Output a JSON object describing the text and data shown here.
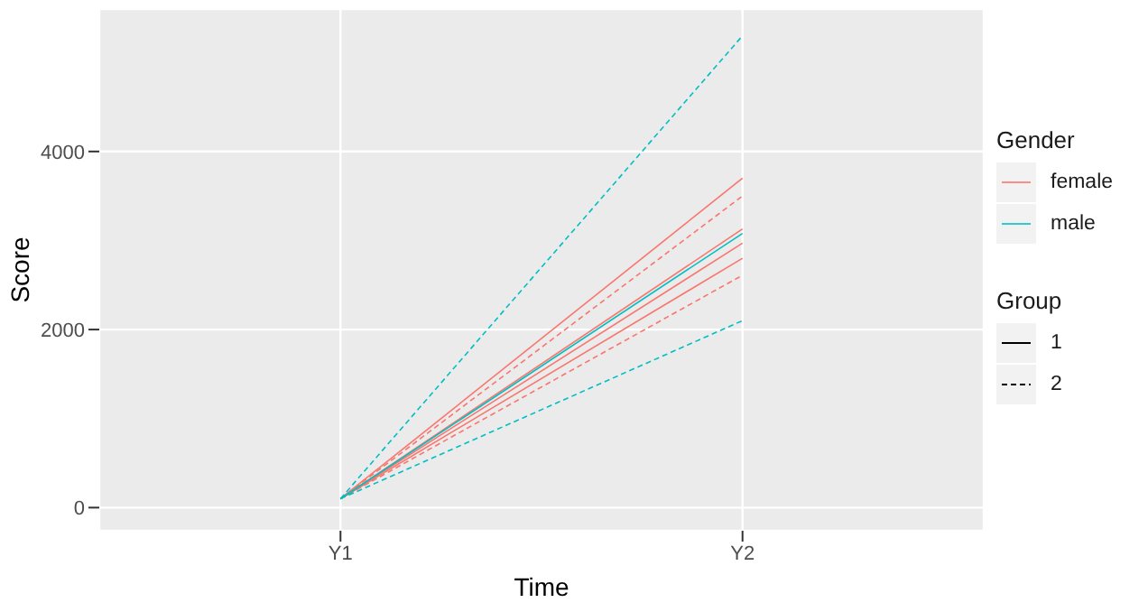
{
  "chart_data": {
    "type": "line",
    "xlabel": "Time",
    "ylabel": "Score",
    "categories": [
      "Y1",
      "Y2"
    ],
    "ylim": [
      -260,
      5600
    ],
    "yticks": [
      0,
      2000,
      4000
    ],
    "grid": true,
    "legend": "right",
    "legend_title": "Gender",
    "marker": "none",
    "series": [
      {
        "name": "female",
        "color": "#f8766d",
        "values": [
          100,
          3700
        ],
        "line_style": "solid"
      },
      {
        "color": "#f8766d",
        "values": [
          100,
          3500
        ],
        "line_style": "dashed"
      },
      {
        "color": "#f8766d",
        "values": [
          100,
          3130
        ],
        "line_style": "solid"
      },
      {
        "color": "#f8766d",
        "values": [
          100,
          2970
        ],
        "line_style": "solid"
      },
      {
        "color": "#f8766d",
        "values": [
          100,
          2800
        ],
        "line_style": "solid"
      },
      {
        "color": "#f8766d",
        "values": [
          100,
          2610
        ],
        "line_style": "dashed"
      },
      {
        "name": "male",
        "color": "#00bfc4",
        "values": [
          100,
          3080
        ],
        "line_style": "solid"
      },
      {
        "color": "#00bfc4",
        "values": [
          100,
          5300
        ],
        "line_style": "dashed"
      },
      {
        "color": "#00bfc4",
        "values": [
          100,
          2100
        ],
        "line_style": "dashed"
      }
    ],
    "annotations": [
      "Group",
      "1",
      "2"
    ]
  }
}
